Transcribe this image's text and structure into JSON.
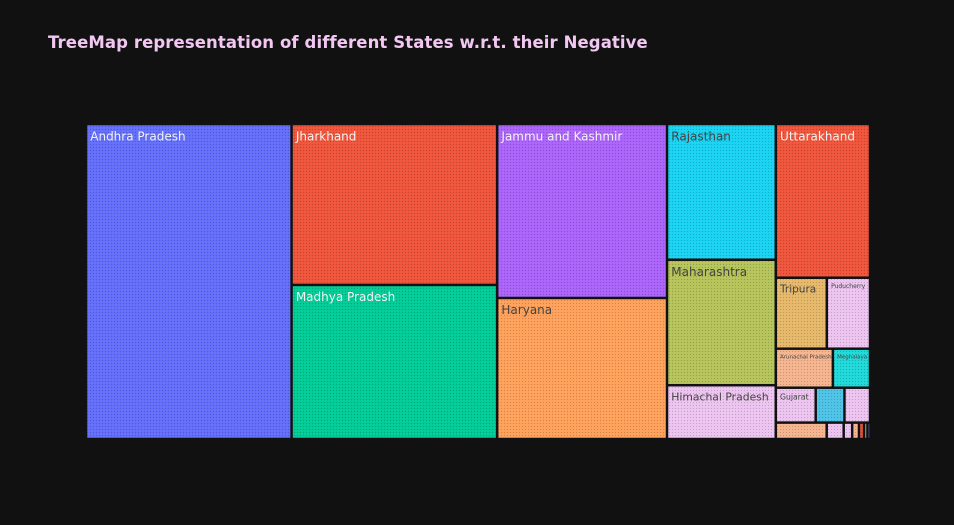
{
  "chart_data": {
    "type": "treemap",
    "title": "TreeMap representation of different States w.r.t. their Negative",
    "tiles": [
      {
        "label": "Andhra Pradesh",
        "value": 2325000,
        "color": "#636efa"
      },
      {
        "label": "Jharkhand",
        "value": 1188000,
        "color": "#ef553b"
      },
      {
        "label": "Madhya Pradesh",
        "value": 1137000,
        "color": "#00cc96"
      },
      {
        "label": "Jammu and Kashmir",
        "value": 1061000,
        "color": "#ab63fa"
      },
      {
        "label": "Haryana",
        "value": 860000,
        "color": "#ffa15a"
      },
      {
        "label": "Rajasthan",
        "value": 530000,
        "color": "#19d3f3"
      },
      {
        "label": "Uttarakhand",
        "value": 520000,
        "color": "#ef553b"
      },
      {
        "label": "Maharashtra",
        "value": 490000,
        "color": "#b6c45a"
      },
      {
        "label": "Himachal Pradesh",
        "value": 210000,
        "color": "#ecc4ef"
      },
      {
        "label": "Tripura",
        "value": 130000,
        "color": "#e6b86a"
      },
      {
        "label": "Puducherry",
        "value": 110000,
        "color": "#ecc4ef"
      },
      {
        "label": "Arunachal Pradesh",
        "value": 80000,
        "color": "#f5b48e"
      },
      {
        "label": "Meghalaya",
        "value": 52000,
        "color": "#1fd9d9"
      },
      {
        "label": "Gujarat",
        "value": 50000,
        "color": "#ecc4ef"
      },
      {
        "label": "",
        "value": 36000,
        "color": "#4ec3e8"
      },
      {
        "label": "",
        "value": 32000,
        "color": "#ecc4ef"
      },
      {
        "label": "",
        "value": 30000,
        "color": "#f5b48e"
      },
      {
        "label": "",
        "value": 10000,
        "color": "#ecc4ef"
      },
      {
        "label": "",
        "value": 5000,
        "color": "#ecc4ef"
      },
      {
        "label": "",
        "value": 4000,
        "color": "#f5b48e"
      },
      {
        "label": "",
        "value": 3000,
        "color": "#ef553b"
      },
      {
        "label": "",
        "value": 2000,
        "color": "#b6c45a"
      },
      {
        "label": "",
        "value": 1500,
        "color": "#636efa"
      }
    ]
  }
}
